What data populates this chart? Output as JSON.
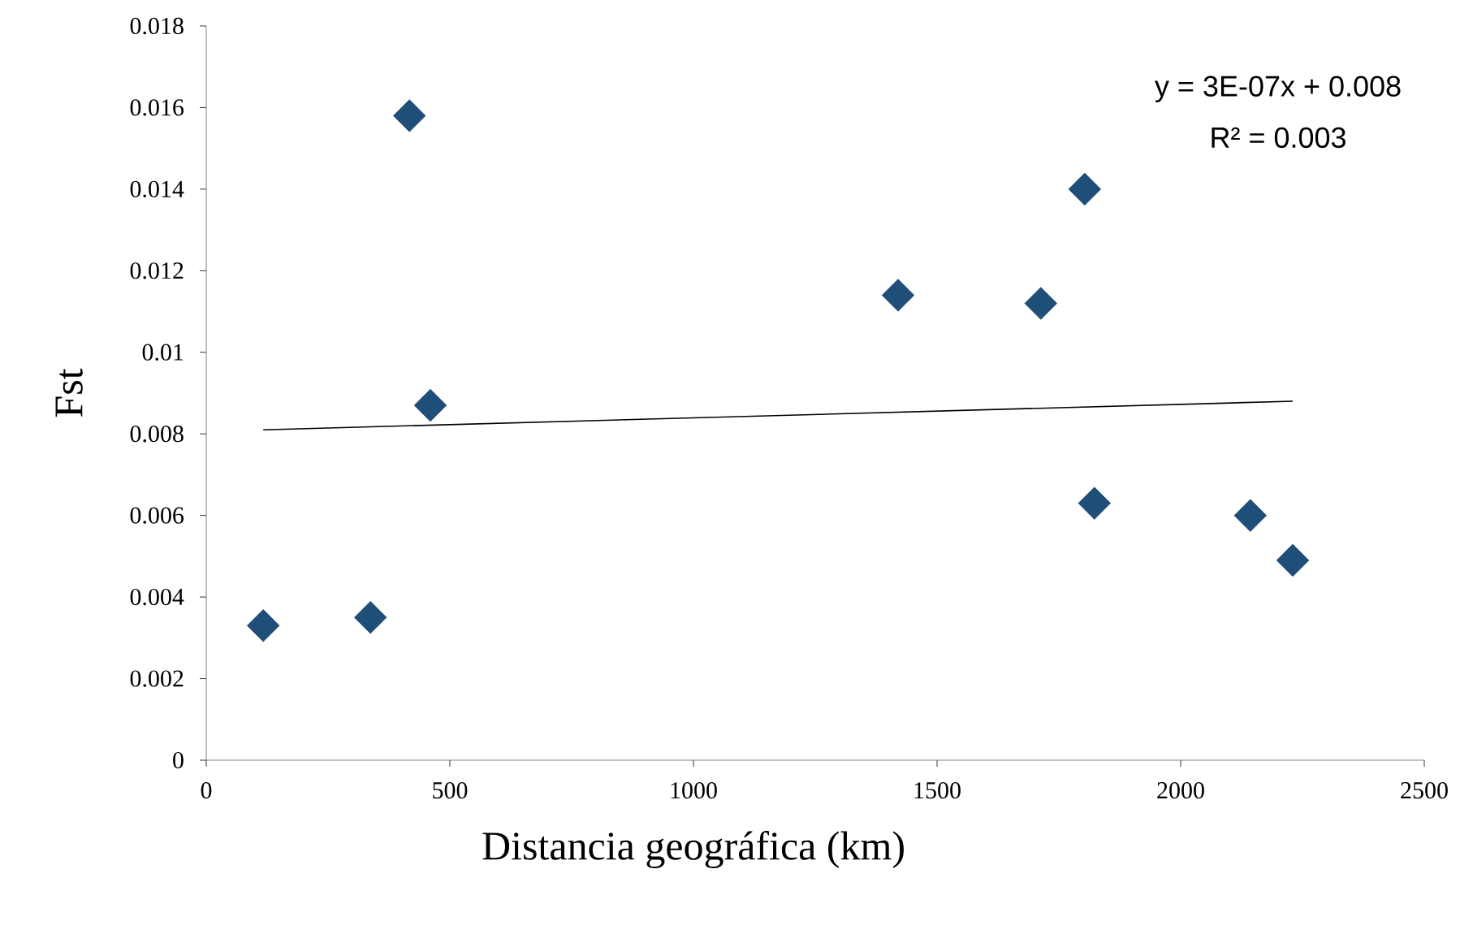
{
  "chart_data": {
    "type": "scatter",
    "xlabel": "Distancia geográfica (km)",
    "ylabel": "Fst",
    "xlim": [
      0,
      2500
    ],
    "xticks": [
      0,
      500,
      1000,
      1500,
      2000,
      2500
    ],
    "ylim": [
      0,
      0.018
    ],
    "yticks": [
      0,
      0.002,
      0.004,
      0.006,
      0.008,
      0.01,
      0.012,
      0.014,
      0.016,
      0.018
    ],
    "grid": false,
    "series": [
      {
        "marker": "diamond",
        "color": "#1f4e79",
        "x": [
          117,
          337,
          417,
          460,
          1420,
          1713,
          1803,
          1823,
          2143,
          2230
        ],
        "values": [
          0.0033,
          0.0035,
          0.0158,
          0.0087,
          0.0114,
          0.0112,
          0.014,
          0.0063,
          0.006,
          0.0049
        ]
      },
      {
        "type": "line",
        "marker": "none",
        "color": "#000000",
        "x": [
          117,
          2230
        ],
        "values": [
          0.0081,
          0.0088
        ]
      }
    ],
    "annotations": [
      "y = 3E-07x + 0.008",
      "R² = 0.003"
    ]
  }
}
